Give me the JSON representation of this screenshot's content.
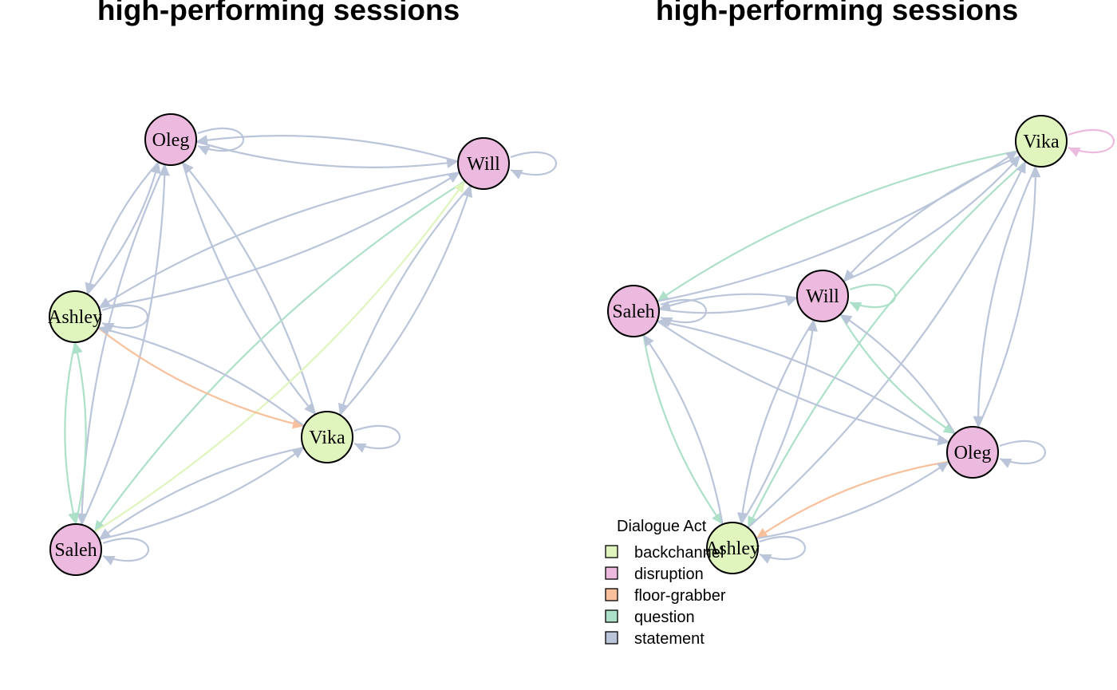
{
  "panels": [
    {
      "title": "high-performing sessions",
      "nodes": [
        {
          "name": "Oleg",
          "act": "disruption"
        },
        {
          "name": "Will",
          "act": "disruption"
        },
        {
          "name": "Ashley",
          "act": "backchannel"
        },
        {
          "name": "Vika",
          "act": "backchannel"
        },
        {
          "name": "Saleh",
          "act": "disruption"
        }
      ],
      "edges": [
        {
          "from": "Oleg",
          "to": "Oleg",
          "act": "statement"
        },
        {
          "from": "Will",
          "to": "Will",
          "act": "statement"
        },
        {
          "from": "Ashley",
          "to": "Ashley",
          "act": "statement"
        },
        {
          "from": "Vika",
          "to": "Vika",
          "act": "statement"
        },
        {
          "from": "Saleh",
          "to": "Saleh",
          "act": "statement"
        },
        {
          "from": "Oleg",
          "to": "Will",
          "act": "statement"
        },
        {
          "from": "Will",
          "to": "Oleg",
          "act": "statement"
        },
        {
          "from": "Oleg",
          "to": "Ashley",
          "act": "statement"
        },
        {
          "from": "Ashley",
          "to": "Oleg",
          "act": "statement"
        },
        {
          "from": "Oleg",
          "to": "Vika",
          "act": "statement"
        },
        {
          "from": "Vika",
          "to": "Oleg",
          "act": "statement"
        },
        {
          "from": "Oleg",
          "to": "Saleh",
          "act": "statement"
        },
        {
          "from": "Saleh",
          "to": "Oleg",
          "act": "statement"
        },
        {
          "from": "Will",
          "to": "Ashley",
          "act": "statement"
        },
        {
          "from": "Ashley",
          "to": "Will",
          "act": "statement"
        },
        {
          "from": "Will",
          "to": "Vika",
          "act": "statement"
        },
        {
          "from": "Vika",
          "to": "Will",
          "act": "statement"
        },
        {
          "from": "Will",
          "to": "Saleh",
          "act": "question"
        },
        {
          "from": "Saleh",
          "to": "Will",
          "act": "backchannel"
        },
        {
          "from": "Ashley",
          "to": "Vika",
          "act": "floor-grabber"
        },
        {
          "from": "Vika",
          "to": "Ashley",
          "act": "statement"
        },
        {
          "from": "Ashley",
          "to": "Saleh",
          "act": "question"
        },
        {
          "from": "Saleh",
          "to": "Ashley",
          "act": "question"
        },
        {
          "from": "Vika",
          "to": "Saleh",
          "act": "statement"
        },
        {
          "from": "Saleh",
          "to": "Vika",
          "act": "statement"
        }
      ]
    },
    {
      "title": "high-performing sessions",
      "nodes": [
        {
          "name": "Vika",
          "act": "backchannel"
        },
        {
          "name": "Saleh",
          "act": "disruption"
        },
        {
          "name": "Will",
          "act": "disruption"
        },
        {
          "name": "Oleg",
          "act": "disruption"
        },
        {
          "name": "Ashley",
          "act": "backchannel"
        }
      ],
      "edges": [
        {
          "from": "Vika",
          "to": "Vika",
          "act": "disruption"
        },
        {
          "from": "Saleh",
          "to": "Saleh",
          "act": "statement"
        },
        {
          "from": "Will",
          "to": "Will",
          "act": "question"
        },
        {
          "from": "Oleg",
          "to": "Oleg",
          "act": "statement"
        },
        {
          "from": "Ashley",
          "to": "Ashley",
          "act": "statement"
        },
        {
          "from": "Vika",
          "to": "Saleh",
          "act": "question"
        },
        {
          "from": "Saleh",
          "to": "Vika",
          "act": "statement"
        },
        {
          "from": "Vika",
          "to": "Will",
          "act": "statement"
        },
        {
          "from": "Will",
          "to": "Vika",
          "act": "statement"
        },
        {
          "from": "Vika",
          "to": "Oleg",
          "act": "statement"
        },
        {
          "from": "Oleg",
          "to": "Vika",
          "act": "statement"
        },
        {
          "from": "Vika",
          "to": "Ashley",
          "act": "question"
        },
        {
          "from": "Ashley",
          "to": "Vika",
          "act": "statement"
        },
        {
          "from": "Saleh",
          "to": "Will",
          "act": "statement"
        },
        {
          "from": "Will",
          "to": "Saleh",
          "act": "statement"
        },
        {
          "from": "Saleh",
          "to": "Oleg",
          "act": "statement"
        },
        {
          "from": "Oleg",
          "to": "Saleh",
          "act": "statement"
        },
        {
          "from": "Saleh",
          "to": "Ashley",
          "act": "question"
        },
        {
          "from": "Ashley",
          "to": "Saleh",
          "act": "statement"
        },
        {
          "from": "Will",
          "to": "Oleg",
          "act": "question"
        },
        {
          "from": "Oleg",
          "to": "Will",
          "act": "statement"
        },
        {
          "from": "Will",
          "to": "Ashley",
          "act": "statement"
        },
        {
          "from": "Ashley",
          "to": "Will",
          "act": "statement"
        },
        {
          "from": "Oleg",
          "to": "Ashley",
          "act": "floor-grabber"
        },
        {
          "from": "Ashley",
          "to": "Oleg",
          "act": "statement"
        }
      ]
    }
  ],
  "legend": {
    "title": "Dialogue Act",
    "items": [
      {
        "label": "backchannel",
        "color": "#e0f4bd"
      },
      {
        "label": "disruption",
        "color": "#edbadf"
      },
      {
        "label": "floor-grabber",
        "color": "#f8c09a"
      },
      {
        "label": "question",
        "color": "#ade0c8"
      },
      {
        "label": "statement",
        "color": "#bbc5da"
      }
    ]
  },
  "colors": {
    "backchannel": "#e0f4bd",
    "disruption": "#edbadf",
    "floor-grabber": "#f8c09a",
    "question": "#ade0c8",
    "statement": "#bbc5da"
  }
}
